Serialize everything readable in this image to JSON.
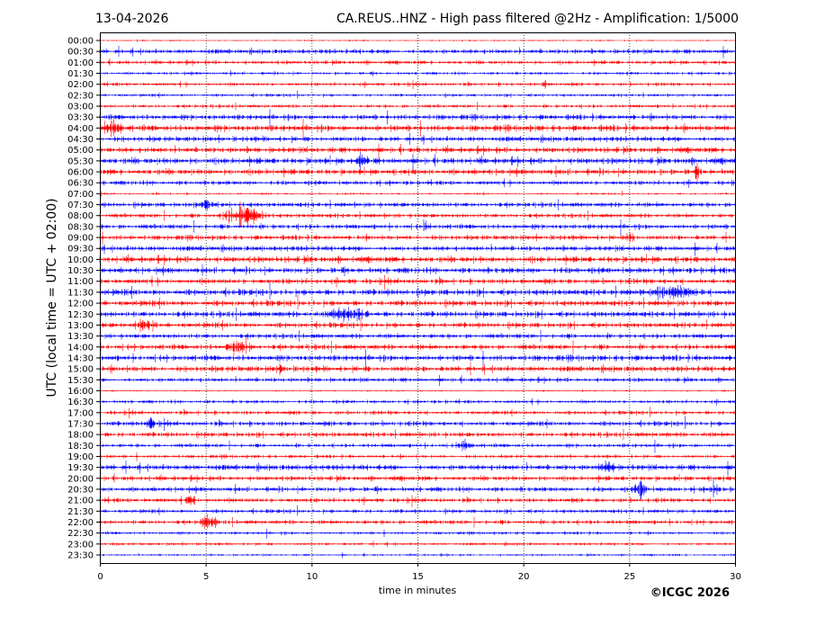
{
  "chart_data": {
    "type": "line",
    "title_left": "13-04-2026",
    "title_right": "CA.REUS..HNZ - High pass filtered @2Hz - Amplification: 1/5000",
    "xlabel": "time in minutes",
    "ylabel": "UTC (local time = UTC + 02:00)",
    "xlim": [
      0,
      30
    ],
    "xticks": [
      "0",
      "5",
      "10",
      "15",
      "20",
      "25",
      "30"
    ],
    "grid": "vertical dotted at 5-minute intervals",
    "row_labels": [
      "00:00",
      "00:30",
      "01:00",
      "01:30",
      "02:00",
      "02:30",
      "03:00",
      "03:30",
      "04:00",
      "04:30",
      "05:00",
      "05:30",
      "06:00",
      "06:30",
      "07:00",
      "07:30",
      "08:00",
      "08:30",
      "09:00",
      "09:30",
      "10:00",
      "10:30",
      "11:00",
      "11:30",
      "12:00",
      "12:30",
      "13:00",
      "13:30",
      "14:00",
      "14:30",
      "15:00",
      "15:30",
      "16:00",
      "16:30",
      "17:00",
      "17:30",
      "18:00",
      "18:30",
      "19:00",
      "19:30",
      "20:00",
      "20:30",
      "21:00",
      "21:30",
      "22:00",
      "22:30",
      "23:00",
      "23:30"
    ],
    "series_colors": [
      "#ff0000",
      "#0000ff"
    ],
    "noise_levels": [
      0.6,
      2,
      1.6,
      1.2,
      1.4,
      1.2,
      1.4,
      2.2,
      2.6,
      2.2,
      2.4,
      2.6,
      2.4,
      1.8,
      0.8,
      2,
      1.8,
      2,
      2,
      2.2,
      2.6,
      2.4,
      2.2,
      2.6,
      2.4,
      2.4,
      2.2,
      2,
      2.2,
      2.4,
      2.4,
      1.8,
      0.6,
      1.4,
      1.6,
      2,
      2,
      1.6,
      1.4,
      2.4,
      2,
      2,
      1.8,
      1.6,
      1.8,
      1.2,
      1.2,
      0.9
    ],
    "events": [
      {
        "row": "08:00",
        "minute": 6.8,
        "duration": 1.6,
        "amplitude": 9
      },
      {
        "row": "12:30",
        "minute": 11.8,
        "duration": 1.4,
        "amplitude": 7
      },
      {
        "row": "07:30",
        "minute": 5.0,
        "duration": 0.5,
        "amplitude": 6
      },
      {
        "row": "22:00",
        "minute": 5.2,
        "duration": 0.7,
        "amplitude": 8
      },
      {
        "row": "02:00",
        "minute": 21.0,
        "duration": 0.2,
        "amplitude": 5
      },
      {
        "row": "09:00",
        "minute": 25.0,
        "duration": 0.3,
        "amplitude": 8
      },
      {
        "row": "04:00",
        "minute": 0.6,
        "duration": 0.8,
        "amplitude": 6
      },
      {
        "row": "20:30",
        "minute": 25.5,
        "duration": 0.5,
        "amplitude": 7
      },
      {
        "row": "20:30",
        "minute": 29.0,
        "duration": 0.3,
        "amplitude": 7
      },
      {
        "row": "14:00",
        "minute": 6.5,
        "duration": 1.0,
        "amplitude": 6
      },
      {
        "row": "17:30",
        "minute": 2.4,
        "duration": 0.4,
        "amplitude": 5
      },
      {
        "row": "21:00",
        "minute": 4.3,
        "duration": 0.4,
        "amplitude": 7
      },
      {
        "row": "11:30",
        "minute": 27.0,
        "duration": 2.0,
        "amplitude": 4
      },
      {
        "row": "18:30",
        "minute": 17.2,
        "duration": 0.6,
        "amplitude": 4
      },
      {
        "row": "05:30",
        "minute": 12.3,
        "duration": 0.6,
        "amplitude": 5
      },
      {
        "row": "06:00",
        "minute": 28.2,
        "duration": 0.3,
        "amplitude": 6
      },
      {
        "row": "08:30",
        "minute": 15.4,
        "duration": 0.3,
        "amplitude": 6
      },
      {
        "row": "19:30",
        "minute": 24.0,
        "duration": 0.6,
        "amplitude": 5
      },
      {
        "row": "15:00",
        "minute": 8.6,
        "duration": 0.4,
        "amplitude": 5
      },
      {
        "row": "13:00",
        "minute": 2.0,
        "duration": 1.0,
        "amplitude": 5
      }
    ]
  },
  "footer": {
    "copyright": "©ICGC 2026"
  }
}
